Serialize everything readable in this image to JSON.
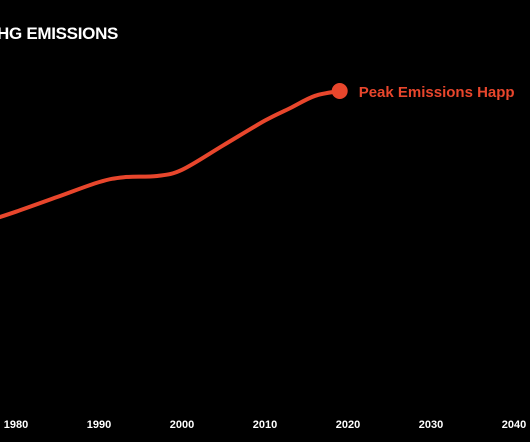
{
  "chart_data": {
    "type": "line",
    "title": "HG EMISSIONS",
    "xlabel": "",
    "ylabel": "",
    "xlim": [
      1975.5,
      2042
    ],
    "ylim": [
      0,
      1
    ],
    "grid": false,
    "legend": "none",
    "x_ticks": [
      "1980",
      "1990",
      "2000",
      "2010",
      "2020",
      "2030",
      "2040"
    ],
    "series": [
      {
        "color": "#e8462c",
        "x": [
          1975.5,
          1980,
          1985,
          1990,
          1993,
          1997,
          2000,
          2005,
          2010,
          2013,
          2016,
          2019
        ],
        "y": [
          0.45,
          0.5,
          0.56,
          0.62,
          0.64,
          0.645,
          0.67,
          0.77,
          0.87,
          0.92,
          0.97,
          0.99
        ]
      }
    ],
    "annotations": [
      {
        "text": "Peak Emissions Happ",
        "x": 2019,
        "y": 0.99,
        "marker": true,
        "color": "#e8462c"
      }
    ]
  }
}
